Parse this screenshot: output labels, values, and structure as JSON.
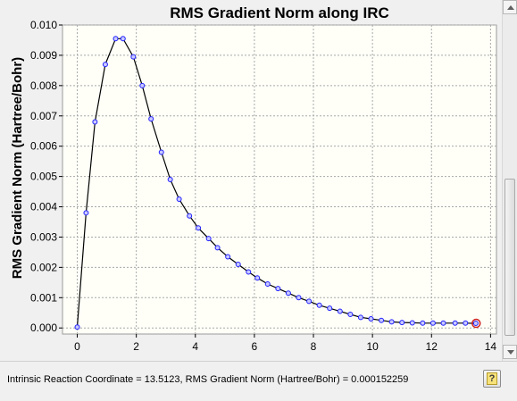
{
  "status": {
    "text": "Intrinsic Reaction Coordinate = 13.5123, RMS Gradient Norm (Hartree/Bohr) = 0.000152259"
  },
  "help": {
    "icon": "help-icon",
    "glyph": "?"
  },
  "chart_data": {
    "type": "line",
    "title": "RMS Gradient Norm along IRC",
    "xlabel": "",
    "ylabel": "RMS Gradient Norm (Hartree/Bohr)",
    "xlim": [
      -0.5,
      14.2
    ],
    "ylim": [
      -0.0002,
      0.01
    ],
    "xticks": [
      "0",
      "2",
      "4",
      "6",
      "8",
      "10",
      "12",
      "14"
    ],
    "yticks": [
      "0.000",
      "0.001",
      "0.002",
      "0.003",
      "0.004",
      "0.005",
      "0.006",
      "0.007",
      "0.008",
      "0.009",
      "0.010"
    ],
    "grid": true,
    "line_color": "#000000",
    "marker_color": "#2020ff",
    "highlight_color": "#d02020",
    "series": [
      {
        "x": [
          0.0,
          0.3,
          0.6,
          0.95,
          1.3,
          1.55,
          1.9,
          2.2,
          2.5,
          2.85,
          3.15,
          3.45,
          3.8,
          4.1,
          4.45,
          4.75,
          5.1,
          5.45,
          5.8,
          6.1,
          6.45,
          6.8,
          7.15,
          7.5,
          7.85,
          8.2,
          8.55,
          8.9,
          9.25,
          9.6,
          9.95,
          10.3,
          10.65,
          11.0,
          11.35,
          11.7,
          12.05,
          12.4,
          12.8,
          13.15,
          13.5
        ],
        "y": [
          3e-05,
          0.0038,
          0.0068,
          0.0087,
          0.00955,
          0.00955,
          0.00895,
          0.008,
          0.0069,
          0.0058,
          0.0049,
          0.00425,
          0.0037,
          0.0033,
          0.00295,
          0.00265,
          0.00235,
          0.0021,
          0.00185,
          0.00165,
          0.00145,
          0.0013,
          0.00115,
          0.001,
          0.00088,
          0.00075,
          0.00065,
          0.00055,
          0.00045,
          0.00035,
          0.0003,
          0.00025,
          0.0002,
          0.00018,
          0.00017,
          0.00016,
          0.00016,
          0.00016,
          0.00016,
          0.00016,
          0.000152259
        ]
      }
    ],
    "highlight_point": {
      "x": 13.5123,
      "y": 0.000152259
    }
  }
}
